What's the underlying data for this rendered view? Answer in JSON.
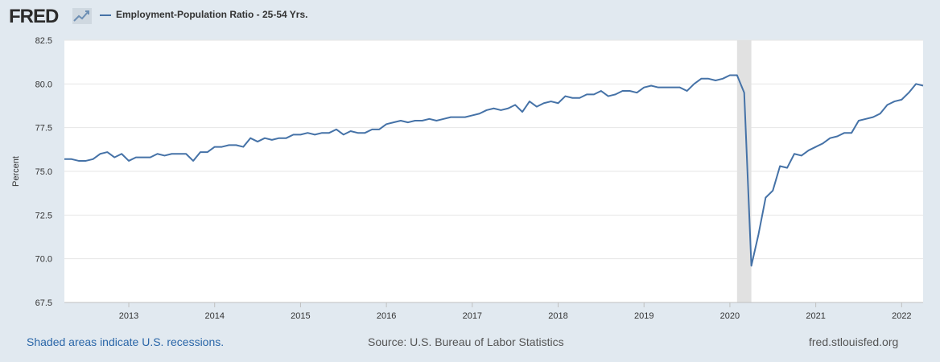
{
  "header": {
    "logo_text": "FRED",
    "logo_icon": "line-graph-icon",
    "legend_label": "Employment-Population Ratio - 25-54 Yrs.",
    "series_color": "#4572a7"
  },
  "footer": {
    "left": "Shaded areas indicate U.S. recessions.",
    "source": "Source: U.S. Bureau of Labor Statistics",
    "site": "fred.stlouisfed.org"
  },
  "chart_data": {
    "type": "line",
    "ylabel": "Percent",
    "ylim": [
      67.5,
      82.5
    ],
    "yticks": [
      "67.5",
      "70.0",
      "72.5",
      "75.0",
      "77.5",
      "80.0",
      "82.5"
    ],
    "xlim": [
      "2012-04",
      "2022-04"
    ],
    "xticks": [
      "2013",
      "2014",
      "2015",
      "2016",
      "2017",
      "2018",
      "2019",
      "2020",
      "2021",
      "2022"
    ],
    "grid": "horizontal",
    "recession_shading": [
      [
        "2020-02",
        "2020-04"
      ]
    ],
    "series": [
      {
        "name": "Employment-Population Ratio - 25-54 Yrs.",
        "color": "#4572a7",
        "start": "2012-04",
        "frequency": "monthly",
        "values": [
          75.7,
          75.7,
          75.6,
          75.6,
          75.7,
          76.0,
          76.1,
          75.8,
          76.0,
          75.6,
          75.8,
          75.8,
          75.8,
          76.0,
          75.9,
          76.0,
          76.0,
          76.0,
          75.6,
          76.1,
          76.1,
          76.4,
          76.4,
          76.5,
          76.5,
          76.4,
          76.9,
          76.7,
          76.9,
          76.8,
          76.9,
          76.9,
          77.1,
          77.1,
          77.2,
          77.1,
          77.2,
          77.2,
          77.4,
          77.1,
          77.3,
          77.2,
          77.2,
          77.4,
          77.4,
          77.7,
          77.8,
          77.9,
          77.8,
          77.9,
          77.9,
          78.0,
          77.9,
          78.0,
          78.1,
          78.1,
          78.1,
          78.2,
          78.3,
          78.5,
          78.6,
          78.5,
          78.6,
          78.8,
          78.4,
          79.0,
          78.7,
          78.9,
          79.0,
          78.9,
          79.3,
          79.2,
          79.2,
          79.4,
          79.4,
          79.6,
          79.3,
          79.4,
          79.6,
          79.6,
          79.5,
          79.8,
          79.9,
          79.8,
          79.8,
          79.8,
          79.8,
          79.6,
          80.0,
          80.3,
          80.3,
          80.2,
          80.3,
          80.5,
          80.5,
          79.5,
          69.6,
          71.4,
          73.5,
          73.9,
          75.3,
          75.2,
          76.0,
          75.9,
          76.2,
          76.4,
          76.6,
          76.9,
          77.0,
          77.2,
          77.2,
          77.9,
          78.0,
          78.1,
          78.3,
          78.8,
          79.0,
          79.1,
          79.5,
          80.0,
          79.9
        ]
      }
    ]
  }
}
